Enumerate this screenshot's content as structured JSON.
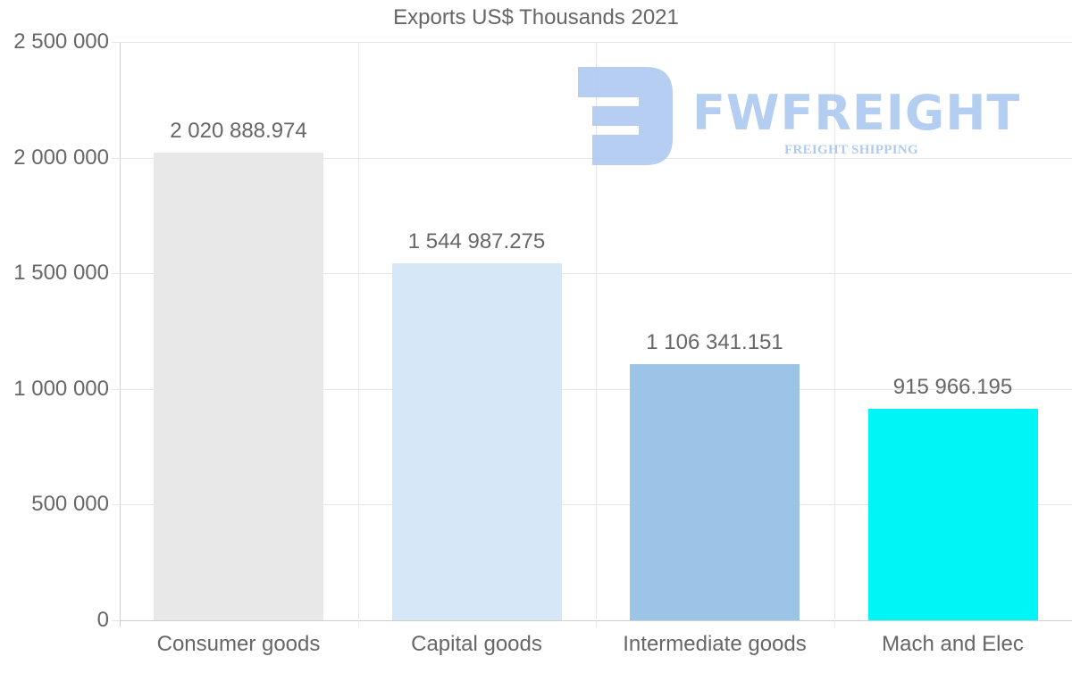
{
  "chart_data": {
    "type": "bar",
    "title": "Exports US$ Thousands 2021",
    "categories": [
      "Consumer goods",
      "Capital goods",
      "Intermediate goods",
      "Mach and Elec"
    ],
    "values": [
      2020888.974,
      1544987.275,
      1106341.151,
      915966.195
    ],
    "value_labels": [
      "2 020 888.974",
      "1 544 987.275",
      "1 106 341.151",
      "915 966.195"
    ],
    "colors": [
      "#e8e8e8",
      "#d6e8f8",
      "#9cc4e6",
      "#00f6f6"
    ],
    "xlabel": "",
    "ylabel": "",
    "ylim": [
      0,
      2500000
    ],
    "yticks": [
      0,
      500000,
      1000000,
      1500000,
      2000000,
      2500000
    ],
    "ytick_labels": [
      "0",
      "500 000",
      "1 000 000",
      "1 500 000",
      "2 000 000",
      "2 500 000"
    ],
    "grid": true,
    "legend": null
  },
  "watermark": {
    "brand": "FWFREIGHT",
    "tagline": "FREIGHT SHIPPING",
    "color": "#a8c6f0"
  }
}
